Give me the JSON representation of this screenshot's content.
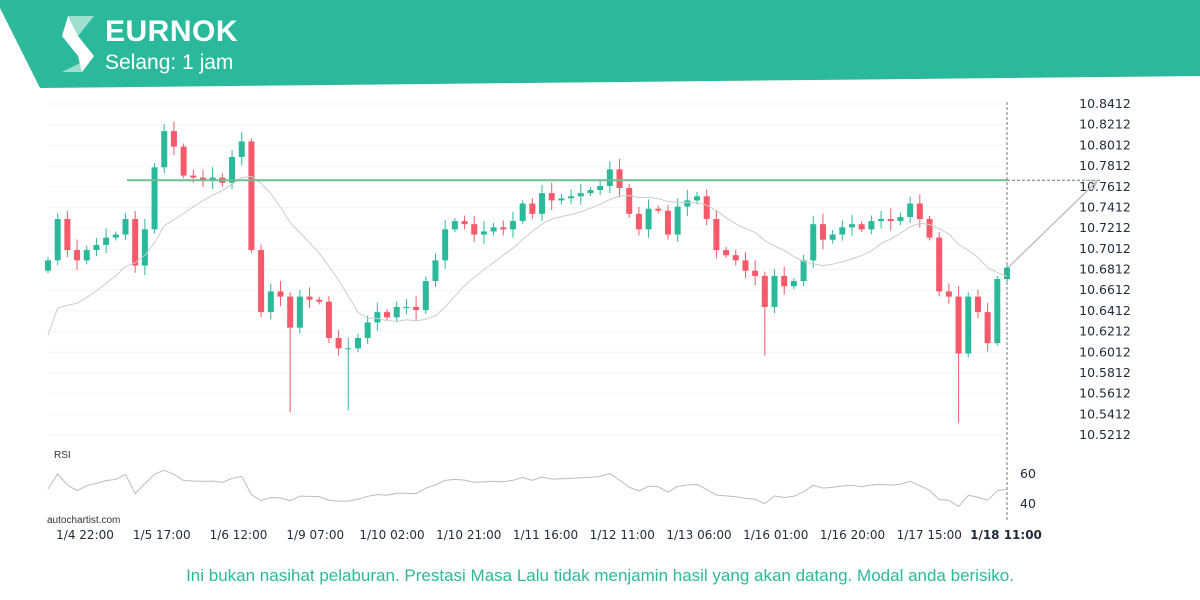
{
  "header": {
    "symbol": "EURNOK",
    "interval": "Selang: 1 jam",
    "brand_color": "#2bb99c",
    "logo": "autochartist-s-logo"
  },
  "chart_data": {
    "type": "candlestick",
    "symbol": "EURNOK",
    "y_ticks": [
      "10.8412",
      "10.8212",
      "10.8012",
      "10.7812",
      "10.7612",
      "10.7412",
      "10.7212",
      "10.7012",
      "10.6812",
      "10.6612",
      "10.6412",
      "10.6212",
      "10.6012",
      "10.5812",
      "10.5612",
      "10.5412",
      "10.5212"
    ],
    "ylim": [
      10.5212,
      10.8412
    ],
    "x_ticks": [
      "1/4 22:00",
      "1/5 17:00",
      "1/6 12:00",
      "1/9 07:00",
      "1/10 02:00",
      "1/10 21:00",
      "1/11 16:00",
      "1/12 11:00",
      "1/13 06:00",
      "1/16 01:00",
      "1/16 20:00",
      "1/17 15:00",
      "1/18 11:00"
    ],
    "closes": [
      10.69,
      10.73,
      10.7,
      10.69,
      10.7,
      10.705,
      10.712,
      10.715,
      10.73,
      10.685,
      10.72,
      10.78,
      10.815,
      10.8,
      10.772,
      10.77,
      10.768,
      10.77,
      10.765,
      10.79,
      10.805,
      10.7,
      10.64,
      10.66,
      10.655,
      10.625,
      10.655,
      10.652,
      10.65,
      10.615,
      10.605,
      10.605,
      10.615,
      10.63,
      10.64,
      10.635,
      10.645,
      10.645,
      10.642,
      10.67,
      10.69,
      10.72,
      10.728,
      10.725,
      10.715,
      10.718,
      10.722,
      10.72,
      10.728,
      10.745,
      10.735,
      10.755,
      10.748,
      10.75,
      10.752,
      10.755,
      10.758,
      10.762,
      10.778,
      10.76,
      10.735,
      10.72,
      10.74,
      10.738,
      10.715,
      10.742,
      10.748,
      10.752,
      10.73,
      10.7,
      10.695,
      10.69,
      10.68,
      10.675,
      10.645,
      10.675,
      10.665,
      10.67,
      10.69,
      10.725,
      10.71,
      10.715,
      10.722,
      10.725,
      10.72,
      10.728,
      10.73,
      10.728,
      10.732,
      10.745,
      10.73,
      10.712,
      10.66,
      10.655,
      10.6,
      10.655,
      10.64,
      10.61,
      10.672,
      10.683
    ],
    "low_extremes": {
      "25": 10.543,
      "31": 10.545,
      "74": 10.598,
      "94": 10.533
    },
    "resistance_level": 10.7675,
    "forecast_target": 10.7675,
    "rsi_label": "RSI",
    "rsi_ticks": [
      "60",
      "40"
    ],
    "colors": {
      "up": "#2bb99c",
      "down": "#f5596a",
      "resistance": "#6dbf8f",
      "ma": "#cccccc",
      "rsi": "#bbbbbb"
    }
  },
  "footer": {
    "credit": "autochartist.com",
    "disclaimer": "Ini bukan nasihat pelaburan. Prestasi Masa Lalu tidak menjamin hasil yang akan datang. Modal anda berisiko."
  }
}
